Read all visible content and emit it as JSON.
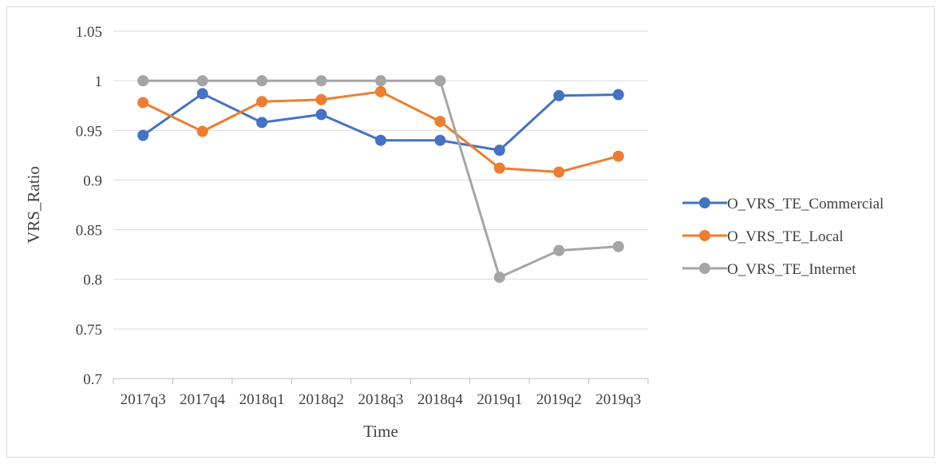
{
  "chart_data": {
    "type": "line",
    "xlabel": "Time",
    "ylabel": "VRS_Ratio",
    "categories": [
      "2017q3",
      "2017q4",
      "2018q1",
      "2018q2",
      "2018q3",
      "2018q4",
      "2019q1",
      "2019q2",
      "2019q3"
    ],
    "ylim": [
      0.7,
      1.05
    ],
    "yticks": [
      "0.7",
      "0.75",
      "0.8",
      "0.85",
      "0.9",
      "0.95",
      "1",
      "1.05"
    ],
    "grid": true,
    "legend_position": "right",
    "series": [
      {
        "name": "O_VRS_TE_Commercial",
        "color": "#4472C4",
        "values": [
          0.945,
          0.987,
          0.958,
          0.966,
          0.94,
          0.94,
          0.93,
          0.985,
          0.986
        ]
      },
      {
        "name": "O_VRS_TE_Local",
        "color": "#ED7D31",
        "values": [
          0.978,
          0.949,
          0.979,
          0.981,
          0.989,
          0.959,
          0.912,
          0.908,
          0.924
        ]
      },
      {
        "name": "O_VRS_TE_Internet",
        "color": "#A5A5A5",
        "values": [
          1.0,
          1.0,
          1.0,
          1.0,
          1.0,
          1.0,
          0.802,
          0.829,
          0.833
        ]
      }
    ]
  }
}
